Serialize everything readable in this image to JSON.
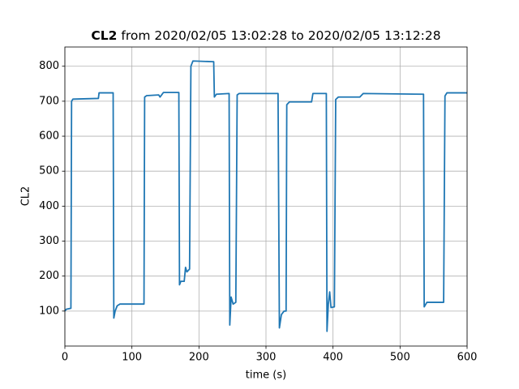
{
  "chart_data": {
    "type": "line",
    "title": [
      "CL2",
      "from 2020/02/05 13:02:28 to 2020/02/05 13:12:28"
    ],
    "xlabel": "time (s)",
    "ylabel": "CL2",
    "x": [
      0,
      2,
      9,
      10,
      12,
      50,
      51,
      72,
      73,
      75,
      78,
      82,
      118,
      119,
      122,
      140,
      142,
      147,
      170,
      171,
      173,
      178,
      180,
      182,
      186,
      188,
      191,
      222,
      223,
      226,
      245,
      246,
      248,
      251,
      255,
      257,
      260,
      318,
      320,
      323,
      327,
      330,
      331,
      335,
      368,
      370,
      390,
      391,
      393,
      395,
      397,
      402,
      404,
      408,
      440,
      445,
      535,
      536,
      540,
      565,
      567,
      570,
      600
    ],
    "series": [
      {
        "color": "#1f77b4",
        "values": [
          100,
          105,
          108,
          700,
          706,
          708,
          724,
          724,
          80,
          100,
          115,
          120,
          120,
          712,
          716,
          718,
          712,
          725,
          725,
          175,
          185,
          185,
          225,
          212,
          220,
          800,
          815,
          813,
          712,
          720,
          722,
          60,
          140,
          120,
          125,
          718,
          722,
          722,
          52,
          90,
          100,
          100,
          690,
          698,
          698,
          722,
          722,
          42,
          120,
          155,
          110,
          112,
          705,
          712,
          712,
          722,
          720,
          112,
          125,
          125,
          715,
          724,
          724
        ]
      }
    ],
    "xlim": [
      0,
      600
    ],
    "xticks": [
      0,
      100,
      200,
      300,
      400,
      500,
      600
    ],
    "ylim": [
      0,
      855
    ],
    "yticks": [
      100,
      200,
      300,
      400,
      500,
      600,
      700,
      800
    ],
    "grid": true
  }
}
